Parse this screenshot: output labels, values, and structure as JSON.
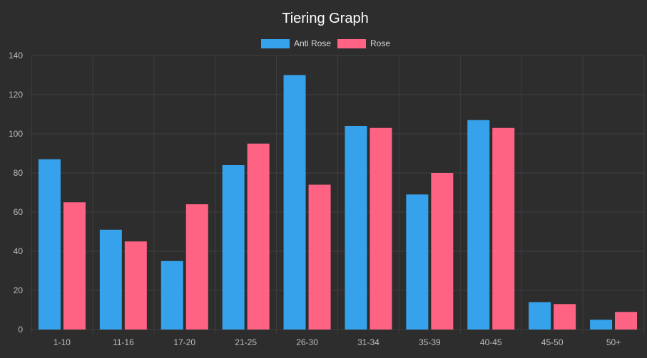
{
  "colors": {
    "background": "#2d2d2d",
    "grid": "#3e3e3e",
    "axis_text": "#bdbdbd",
    "title_text": "#ffffff",
    "legend_text": "#d8d8d8"
  },
  "chart_data": {
    "type": "bar",
    "title": "Tiering Graph",
    "categories": [
      "1-10",
      "11-16",
      "17-20",
      "21-25",
      "26-30",
      "31-34",
      "35-39",
      "40-45",
      "45-50",
      "50+"
    ],
    "series": [
      {
        "name": "Anti Rose",
        "color": "#36a2eb",
        "values": [
          87,
          51,
          35,
          84,
          130,
          104,
          69,
          107,
          14,
          5
        ]
      },
      {
        "name": "Rose",
        "color": "#ff6384",
        "values": [
          65,
          45,
          64,
          95,
          74,
          103,
          80,
          103,
          13,
          9
        ]
      }
    ],
    "ylim": [
      0,
      140
    ],
    "yticks": [
      0,
      20,
      40,
      60,
      80,
      100,
      120,
      140
    ],
    "grid": true,
    "legend_position": "top-center",
    "xlabel": "",
    "ylabel": ""
  }
}
